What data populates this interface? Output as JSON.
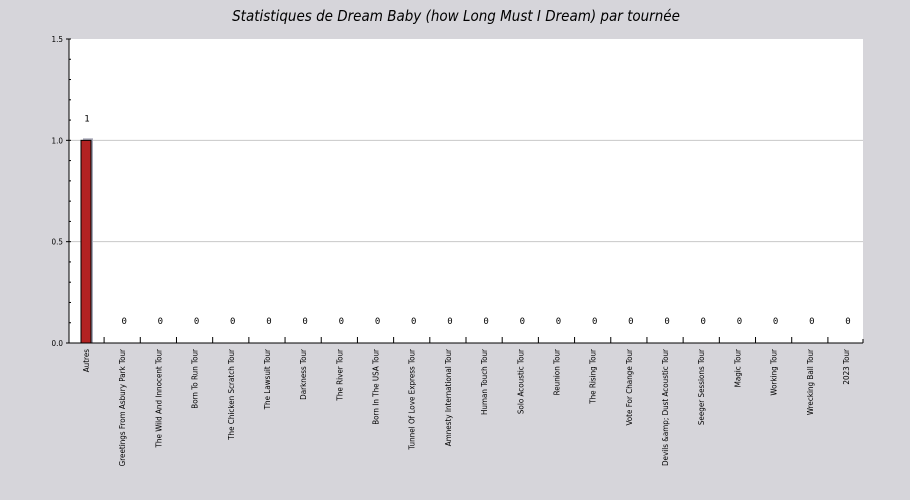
{
  "chart_data": {
    "type": "bar",
    "title": "Statistiques de Dream Baby (how Long Must I Dream) par tournée",
    "xlabel": "",
    "ylabel": "",
    "ylim": [
      0,
      1.5
    ],
    "yticks": [
      "0.0",
      "0.5",
      "1.0",
      "1.5"
    ],
    "grid": true,
    "legend": "none",
    "categories": [
      "Autres",
      "Greetings From Asbury Park Tour",
      "The Wild And Innocent Tour",
      "Born To Run Tour",
      "The Chicken Scratch Tour",
      "The Lawsuit Tour",
      "Darkness Tour",
      "The River Tour",
      "Born In The USA Tour",
      "Tunnel Of Love Express Tour",
      "Amnesty International Tour",
      "Human Touch Tour",
      "Solo Acoustic Tour",
      "Reunion Tour",
      "The Rising Tour",
      "Vote For Change Tour",
      "Devils &amp; Dust Acoustic Tour",
      "Seeger Sessions Tour",
      "Magic Tour",
      "Working Tour",
      "Wrecking Ball Tour",
      "2023 Tour"
    ],
    "values": [
      1,
      0,
      0,
      0,
      0,
      0,
      0,
      0,
      0,
      0,
      0,
      0,
      0,
      0,
      0,
      0,
      0,
      0,
      0,
      0,
      0,
      0
    ],
    "data_labels": [
      "1",
      "0",
      "0",
      "0",
      "0",
      "0",
      "0",
      "0",
      "0",
      "0",
      "0",
      "0",
      "0",
      "0",
      "0",
      "0",
      "0",
      "0",
      "0",
      "0",
      "0",
      "0"
    ],
    "colors": {
      "page_background": "#d6d5da",
      "plot_background": "#ffffff",
      "bar_fill": "#b22222",
      "bar_shadow": "#a9a9b8",
      "gridline": "#c8c8c8",
      "axis": "#000000"
    }
  }
}
